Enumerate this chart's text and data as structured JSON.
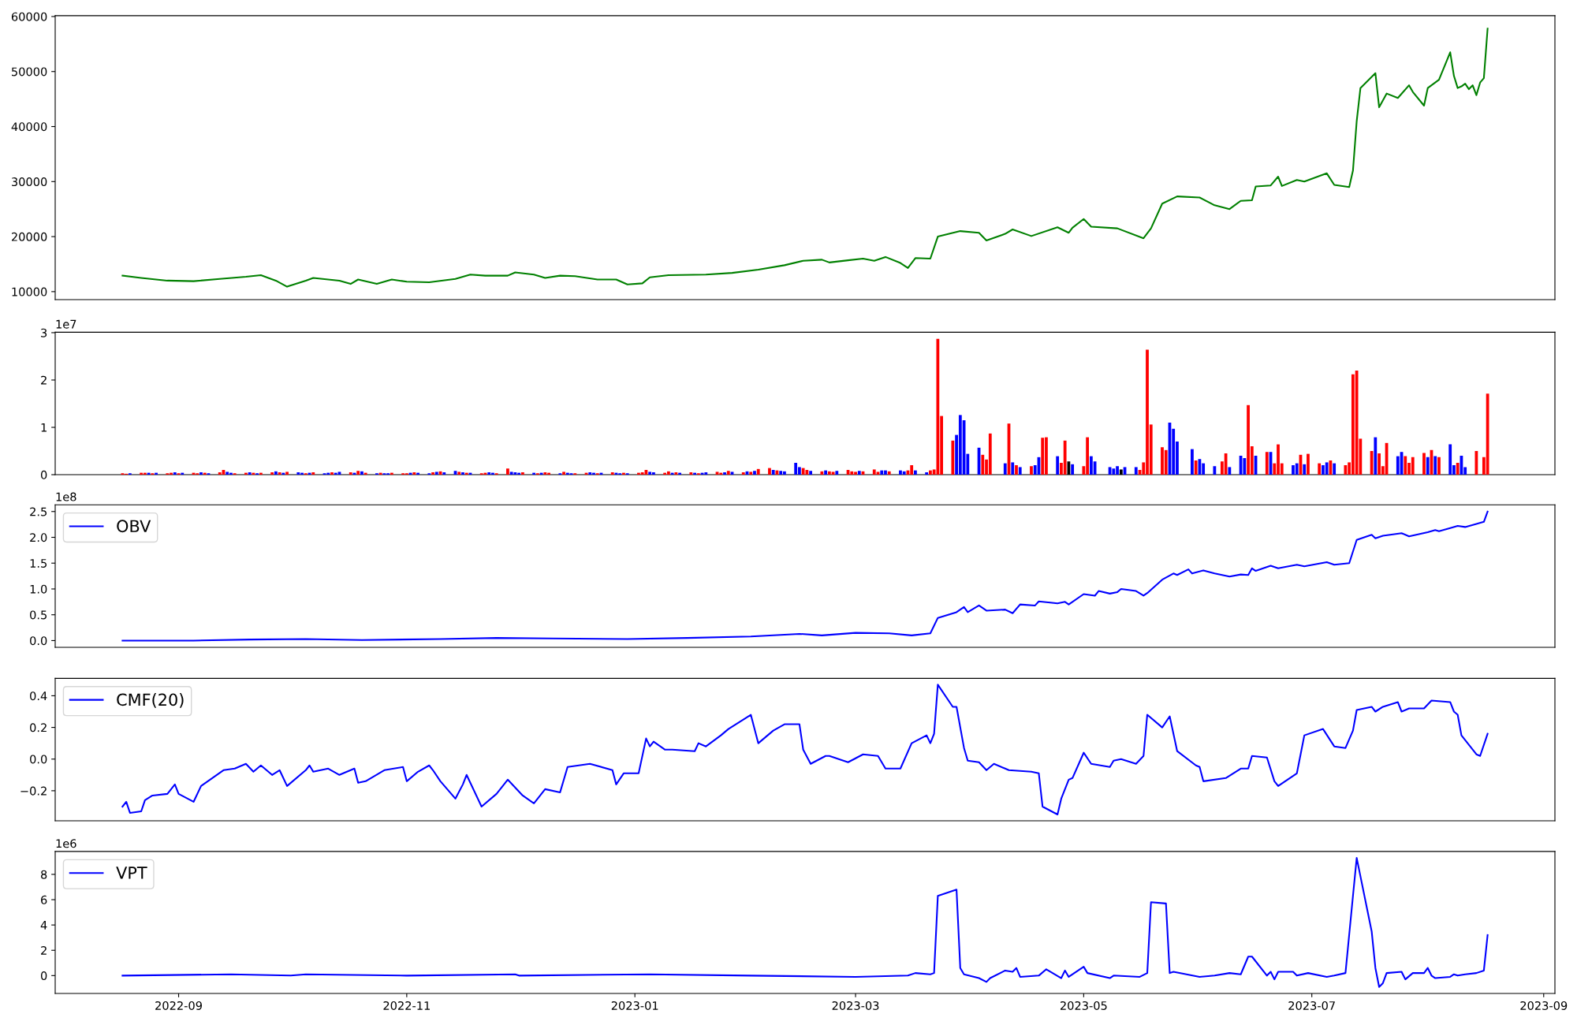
{
  "chart_data": [
    {
      "type": "line",
      "x": [
        "2022-08-17",
        "2022-08-22",
        "2022-08-29",
        "2022-09-05",
        "2022-09-12",
        "2022-09-19",
        "2022-09-23",
        "2022-09-27",
        "2022-09-30",
        "2022-10-05",
        "2022-10-07",
        "2022-10-14",
        "2022-10-17",
        "2022-10-19",
        "2022-10-24",
        "2022-10-28",
        "2022-11-01",
        "2022-11-07",
        "2022-11-14",
        "2022-11-18",
        "2022-11-22",
        "2022-11-28",
        "2022-11-30",
        "2022-12-05",
        "2022-12-08",
        "2022-12-12",
        "2022-12-16",
        "2022-12-22",
        "2022-12-27",
        "2022-12-30",
        "2023-01-03",
        "2023-01-05",
        "2023-01-10",
        "2023-01-20",
        "2023-01-27",
        "2023-02-03",
        "2023-02-10",
        "2023-02-15",
        "2023-02-20",
        "2023-02-22",
        "2023-02-27",
        "2023-03-03",
        "2023-03-06",
        "2023-03-09",
        "2023-03-13",
        "2023-03-15",
        "2023-03-17",
        "2023-03-21",
        "2023-03-23",
        "2023-03-29",
        "2023-04-03",
        "2023-04-05",
        "2023-04-10",
        "2023-04-12",
        "2023-04-17",
        "2023-04-24",
        "2023-04-27",
        "2023-04-28",
        "2023-05-01",
        "2023-05-03",
        "2023-05-10",
        "2023-05-17",
        "2023-05-19",
        "2023-05-22",
        "2023-05-26",
        "2023-06-01",
        "2023-06-05",
        "2023-06-09",
        "2023-06-12",
        "2023-06-15",
        "2023-06-16",
        "2023-06-20",
        "2023-06-22",
        "2023-06-23",
        "2023-06-27",
        "2023-06-29",
        "2023-07-05",
        "2023-07-07",
        "2023-07-11",
        "2023-07-12",
        "2023-07-13",
        "2023-07-14",
        "2023-07-18",
        "2023-07-19",
        "2023-07-21",
        "2023-07-24",
        "2023-07-27",
        "2023-07-28",
        "2023-07-31",
        "2023-08-01",
        "2023-08-04",
        "2023-08-07",
        "2023-08-08",
        "2023-08-09",
        "2023-08-10",
        "2023-08-11",
        "2023-08-12",
        "2023-08-13",
        "2023-08-14",
        "2023-08-15",
        "2023-08-16",
        "2023-08-17"
      ],
      "series": [
        {
          "color": "#008000",
          "values": [
            12900,
            12500,
            12000,
            11900,
            12300,
            12700,
            13000,
            12000,
            10900,
            12000,
            12500,
            12000,
            11400,
            12200,
            11400,
            12200,
            11800,
            11700,
            12300,
            13100,
            12900,
            12900,
            13500,
            13100,
            12500,
            12900,
            12800,
            12200,
            12200,
            11300,
            11500,
            12600,
            13000,
            13100,
            13400,
            14000,
            14800,
            15600,
            15800,
            15300,
            15700,
            16000,
            15600,
            16300,
            15200,
            14300,
            16100,
            16000,
            20000,
            21000,
            20700,
            19300,
            20500,
            21300,
            20100,
            21700,
            20700,
            21600,
            23200,
            21800,
            21500,
            19700,
            21500,
            26000,
            27300,
            27100,
            25700,
            25000,
            26500,
            26600,
            29100,
            29300,
            30900,
            29200,
            30300,
            30000,
            31500,
            29400,
            29000,
            32000,
            41000,
            47000,
            49700,
            43500,
            46000,
            45200,
            47500,
            46300,
            43800,
            47000,
            48500,
            53500,
            49200,
            47000,
            47300,
            47800,
            46800,
            47500,
            45700,
            48000,
            48800,
            57800
          ]
        }
      ],
      "xlim": [
        "2022-07-30",
        "2023-09-04"
      ],
      "ylim": [
        8550,
        60150
      ],
      "yticks": [
        10000,
        20000,
        30000,
        40000,
        50000,
        60000
      ],
      "tick_labels": "y"
    },
    {
      "type": "bar",
      "x": [
        "2022-08-17",
        "2022-08-18",
        "2022-08-19",
        "2022-08-22",
        "2022-08-23",
        "2022-08-24",
        "2022-08-25",
        "2022-08-26",
        "2022-08-29",
        "2022-08-30",
        "2022-08-31",
        "2022-09-01",
        "2022-09-02",
        "2022-09-05",
        "2022-09-06",
        "2022-09-07",
        "2022-09-08",
        "2022-09-09",
        "2022-09-12",
        "2022-09-13",
        "2022-09-14",
        "2022-09-15",
        "2022-09-16",
        "2022-09-19",
        "2022-09-20",
        "2022-09-21",
        "2022-09-22",
        "2022-09-23",
        "2022-09-26",
        "2022-09-27",
        "2022-09-28",
        "2022-09-29",
        "2022-09-30",
        "2022-10-03",
        "2022-10-04",
        "2022-10-05",
        "2022-10-06",
        "2022-10-07",
        "2022-10-10",
        "2022-10-11",
        "2022-10-12",
        "2022-10-13",
        "2022-10-14",
        "2022-10-17",
        "2022-10-18",
        "2022-10-19",
        "2022-10-20",
        "2022-10-21",
        "2022-10-24",
        "2022-10-25",
        "2022-10-26",
        "2022-10-27",
        "2022-10-28",
        "2022-10-31",
        "2022-11-01",
        "2022-11-02",
        "2022-11-03",
        "2022-11-04",
        "2022-11-07",
        "2022-11-08",
        "2022-11-09",
        "2022-11-10",
        "2022-11-11",
        "2022-11-14",
        "2022-11-15",
        "2022-11-16",
        "2022-11-17",
        "2022-11-18",
        "2022-11-21",
        "2022-11-22",
        "2022-11-23",
        "2022-11-24",
        "2022-11-25",
        "2022-11-28",
        "2022-11-29",
        "2022-11-30",
        "2022-12-01",
        "2022-12-02",
        "2022-12-05",
        "2022-12-06",
        "2022-12-07",
        "2022-12-08",
        "2022-12-09",
        "2022-12-12",
        "2022-12-13",
        "2022-12-14",
        "2022-12-15",
        "2022-12-16",
        "2022-12-19",
        "2022-12-20",
        "2022-12-21",
        "2022-12-22",
        "2022-12-23",
        "2022-12-26",
        "2022-12-27",
        "2022-12-28",
        "2022-12-29",
        "2022-12-30",
        "2023-01-02",
        "2023-01-03",
        "2023-01-04",
        "2023-01-05",
        "2023-01-06",
        "2023-01-09",
        "2023-01-10",
        "2023-01-11",
        "2023-01-12",
        "2023-01-13",
        "2023-01-16",
        "2023-01-17",
        "2023-01-18",
        "2023-01-19",
        "2023-01-20",
        "2023-01-23",
        "2023-01-24",
        "2023-01-25",
        "2023-01-26",
        "2023-01-27",
        "2023-01-30",
        "2023-01-31",
        "2023-02-01",
        "2023-02-02",
        "2023-02-03",
        "2023-02-06",
        "2023-02-07",
        "2023-02-08",
        "2023-02-09",
        "2023-02-10",
        "2023-02-13",
        "2023-02-14",
        "2023-02-15",
        "2023-02-16",
        "2023-02-17",
        "2023-02-20",
        "2023-02-21",
        "2023-02-22",
        "2023-02-23",
        "2023-02-24",
        "2023-02-27",
        "2023-02-28",
        "2023-03-01",
        "2023-03-02",
        "2023-03-03",
        "2023-03-06",
        "2023-03-07",
        "2023-03-08",
        "2023-03-09",
        "2023-03-10",
        "2023-03-13",
        "2023-03-14",
        "2023-03-15",
        "2023-03-16",
        "2023-03-17",
        "2023-03-20",
        "2023-03-21",
        "2023-03-22",
        "2023-03-23",
        "2023-03-24",
        "2023-03-27",
        "2023-03-28",
        "2023-03-29",
        "2023-03-30",
        "2023-03-31",
        "2023-04-03",
        "2023-04-04",
        "2023-04-05",
        "2023-04-06",
        "2023-04-10",
        "2023-04-11",
        "2023-04-12",
        "2023-04-13",
        "2023-04-14",
        "2023-04-17",
        "2023-04-18",
        "2023-04-19",
        "2023-04-20",
        "2023-04-21",
        "2023-04-24",
        "2023-04-25",
        "2023-04-26",
        "2023-04-27",
        "2023-04-28",
        "2023-05-01",
        "2023-05-02",
        "2023-05-03",
        "2023-05-04",
        "2023-05-08",
        "2023-05-09",
        "2023-05-10",
        "2023-05-11",
        "2023-05-12",
        "2023-05-15",
        "2023-05-16",
        "2023-05-17",
        "2023-05-18",
        "2023-05-19",
        "2023-05-22",
        "2023-05-23",
        "2023-05-24",
        "2023-05-25",
        "2023-05-26",
        "2023-05-30",
        "2023-05-31",
        "2023-06-01",
        "2023-06-02",
        "2023-06-05",
        "2023-06-07",
        "2023-06-08",
        "2023-06-09",
        "2023-06-12",
        "2023-06-13",
        "2023-06-14",
        "2023-06-15",
        "2023-06-16",
        "2023-06-19",
        "2023-06-20",
        "2023-06-21",
        "2023-06-22",
        "2023-06-23",
        "2023-06-26",
        "2023-06-27",
        "2023-06-28",
        "2023-06-29",
        "2023-06-30",
        "2023-07-03",
        "2023-07-04",
        "2023-07-05",
        "2023-07-06",
        "2023-07-07",
        "2023-07-10",
        "2023-07-11",
        "2023-07-12",
        "2023-07-13",
        "2023-07-14",
        "2023-07-17",
        "2023-07-18",
        "2023-07-19",
        "2023-07-20",
        "2023-07-21",
        "2023-07-24",
        "2023-07-25",
        "2023-07-26",
        "2023-07-27",
        "2023-07-28",
        "2023-07-31",
        "2023-08-01",
        "2023-08-02",
        "2023-08-03",
        "2023-08-04",
        "2023-08-07",
        "2023-08-08",
        "2023-08-09",
        "2023-08-10",
        "2023-08-11",
        "2023-08-14",
        "2023-08-16",
        "2023-08-17"
      ],
      "values": [
        0.03,
        0.02,
        0.03,
        0.04,
        0.04,
        0.04,
        0.03,
        0.04,
        0.03,
        0.04,
        0.05,
        0.03,
        0.04,
        0.04,
        0.03,
        0.05,
        0.04,
        0.03,
        0.05,
        0.1,
        0.06,
        0.04,
        0.03,
        0.04,
        0.05,
        0.04,
        0.03,
        0.04,
        0.05,
        0.07,
        0.05,
        0.04,
        0.06,
        0.05,
        0.04,
        0.03,
        0.04,
        0.05,
        0.03,
        0.04,
        0.05,
        0.04,
        0.06,
        0.05,
        0.04,
        0.08,
        0.07,
        0.04,
        0.03,
        0.04,
        0.03,
        0.03,
        0.04,
        0.03,
        0.03,
        0.04,
        0.05,
        0.04,
        0.03,
        0.05,
        0.06,
        0.07,
        0.05,
        0.08,
        0.06,
        0.05,
        0.04,
        0.04,
        0.03,
        0.04,
        0.05,
        0.04,
        0.03,
        0.13,
        0.06,
        0.05,
        0.04,
        0.05,
        0.04,
        0.03,
        0.04,
        0.05,
        0.04,
        0.03,
        0.06,
        0.04,
        0.03,
        0.03,
        0.04,
        0.05,
        0.04,
        0.03,
        0.04,
        0.05,
        0.04,
        0.03,
        0.04,
        0.03,
        0.04,
        0.05,
        0.1,
        0.06,
        0.05,
        0.04,
        0.07,
        0.04,
        0.05,
        0.04,
        0.05,
        0.04,
        0.03,
        0.04,
        0.05,
        0.06,
        0.04,
        0.05,
        0.08,
        0.06,
        0.05,
        0.07,
        0.06,
        0.08,
        0.12,
        0.14,
        0.1,
        0.09,
        0.08,
        0.07,
        0.25,
        0.16,
        0.14,
        0.1,
        0.08,
        0.07,
        0.09,
        0.07,
        0.06,
        0.08,
        0.1,
        0.07,
        0.06,
        0.08,
        0.07,
        0.11,
        0.06,
        0.09,
        0.09,
        0.07,
        0.09,
        0.07,
        0.09,
        0.2,
        0.09,
        0.05,
        0.09,
        0.11,
        2.87,
        1.24,
        0.72,
        0.84,
        1.26,
        1.15,
        0.44,
        0.57,
        0.42,
        0.32,
        0.87,
        0.24,
        1.08,
        0.26,
        0.2,
        0.16,
        0.18,
        0.2,
        0.37,
        0.78,
        0.79,
        0.39,
        0.25,
        0.72,
        0.28,
        0.22,
        0.18,
        0.79,
        0.39,
        0.28,
        0.16,
        0.13,
        0.18,
        0.11,
        0.16,
        0.16,
        0.1,
        0.26,
        2.64,
        1.06,
        0.58,
        0.52,
        1.1,
        0.97,
        0.7,
        0.54,
        0.3,
        0.33,
        0.24,
        0.18,
        0.28,
        0.45,
        0.16,
        0.4,
        0.35,
        1.47,
        0.6,
        0.4,
        0.48,
        0.48,
        0.24,
        0.64,
        0.24,
        0.2,
        0.24,
        0.42,
        0.22,
        0.44,
        0.24,
        0.2,
        0.26,
        0.3,
        0.24,
        0.2,
        0.26,
        2.12,
        2.2,
        0.76,
        0.5,
        0.79,
        0.45,
        0.18,
        0.67,
        0.39,
        0.48,
        0.39,
        0.25,
        0.37,
        0.46,
        0.37,
        0.52,
        0.39,
        0.37,
        0.64,
        0.2,
        0.25,
        0.4,
        0.16,
        0.5,
        0.37,
        1.71
      ],
      "colors": [
        "#ff0000",
        "#ff0000",
        "#0000ff",
        "#ff0000",
        "#ff0000",
        "#0000ff",
        "#ff0000",
        "#0000ff",
        "#ff0000",
        "#ff0000",
        "#0000ff",
        "#ff0000",
        "#0000ff",
        "#ff0000",
        "#ff0000",
        "#0000ff",
        "#ff0000",
        "#0000ff",
        "#ff0000",
        "#ff0000",
        "#0000ff",
        "#0000ff",
        "#ff0000",
        "#ff0000",
        "#0000ff",
        "#ff0000",
        "#0000ff",
        "#ff0000",
        "#ff0000",
        "#0000ff",
        "#ff0000",
        "#0000ff",
        "#ff0000",
        "#0000ff",
        "#0000ff",
        "#ff0000",
        "#0000ff",
        "#ff0000",
        "#0000ff",
        "#0000ff",
        "#ff0000",
        "#0000ff",
        "#0000ff",
        "#ff0000",
        "#0000ff",
        "#ff0000",
        "#0000ff",
        "#ff0000",
        "#0000ff",
        "#ff0000",
        "#0000ff",
        "#0000ff",
        "#ff0000",
        "#ff0000",
        "#ff0000",
        "#0000ff",
        "#ff0000",
        "#0000ff",
        "#0000ff",
        "#ff0000",
        "#0000ff",
        "#ff0000",
        "#0000ff",
        "#0000ff",
        "#ff0000",
        "#0000ff",
        "#ff0000",
        "#0000ff",
        "#ff0000",
        "#ff0000",
        "#0000ff",
        "#0000ff",
        "#ff0000",
        "#ff0000",
        "#0000ff",
        "#0000ff",
        "#0000ff",
        "#ff0000",
        "#0000ff",
        "#ff0000",
        "#0000ff",
        "#ff0000",
        "#ff0000",
        "#0000ff",
        "#ff0000",
        "#0000ff",
        "#0000ff",
        "#ff0000",
        "#ff0000",
        "#0000ff",
        "#0000ff",
        "#ff0000",
        "#0000ff",
        "#ff0000",
        "#0000ff",
        "#0000ff",
        "#ff0000",
        "#0000ff",
        "#ff0000",
        "#ff0000",
        "#ff0000",
        "#0000ff",
        "#0000ff",
        "#ff0000",
        "#ff0000",
        "#0000ff",
        "#ff0000",
        "#0000ff",
        "#ff0000",
        "#0000ff",
        "#ff0000",
        "#0000ff",
        "#0000ff",
        "#ff0000",
        "#ff0000",
        "#0000ff",
        "#ff0000",
        "#0000ff",
        "#ff0000",
        "#0000ff",
        "#ff0000",
        "#0000ff",
        "#ff0000",
        "#ff0000",
        "#0000ff",
        "#ff0000",
        "#0000ff",
        "#0000ff",
        "#0000ff",
        "#0000ff",
        "#ff0000",
        "#ff0000",
        "#0000ff",
        "#ff0000",
        "#0000ff",
        "#ff0000",
        "#ff0000",
        "#0000ff",
        "#ff0000",
        "#ff0000",
        "#ff0000",
        "#0000ff",
        "#ff0000",
        "#ff0000",
        "#ff0000",
        "#0000ff",
        "#0000ff",
        "#ff0000",
        "#0000ff",
        "#0000ff",
        "#ff0000",
        "#ff0000",
        "#0000ff",
        "#0000ff",
        "#ff0000",
        "#ff0000",
        "#ff0000",
        "#ff0000",
        "#ff0000",
        "#0000ff",
        "#0000ff",
        "#0000ff",
        "#0000ff",
        "#0000ff",
        "#ff0000",
        "#ff0000",
        "#ff0000",
        "#0000ff",
        "#ff0000",
        "#0000ff",
        "#ff0000",
        "#0000ff",
        "#ff0000",
        "#0000ff",
        "#0000ff",
        "#ff0000",
        "#ff0000",
        "#0000ff",
        "#ff0000",
        "#ff0000",
        "#000000",
        "#0000ff",
        "#ff0000",
        "#ff0000",
        "#0000ff",
        "#0000ff",
        "#0000ff",
        "#0000ff",
        "#0000ff",
        "#000000",
        "#0000ff",
        "#0000ff",
        "#ff0000",
        "#ff0000",
        "#ff0000",
        "#ff0000",
        "#ff0000",
        "#ff0000",
        "#0000ff",
        "#0000ff",
        "#0000ff",
        "#0000ff",
        "#ff0000",
        "#0000ff",
        "#0000ff",
        "#0000ff",
        "#ff0000",
        "#ff0000",
        "#0000ff",
        "#0000ff",
        "#0000ff",
        "#ff0000",
        "#ff0000",
        "#0000ff",
        "#ff0000",
        "#0000ff",
        "#ff0000",
        "#ff0000",
        "#ff0000",
        "#0000ff",
        "#0000ff",
        "#ff0000",
        "#0000ff",
        "#ff0000",
        "#ff0000",
        "#0000ff",
        "#0000ff",
        "#ff0000",
        "#0000ff",
        "#ff0000",
        "#ff0000",
        "#ff0000",
        "#ff0000",
        "#ff0000",
        "#ff0000",
        "#0000ff",
        "#ff0000",
        "#ff0000",
        "#ff0000",
        "#0000ff",
        "#0000ff",
        "#ff0000",
        "#ff0000",
        "#ff0000",
        "#ff0000",
        "#0000ff",
        "#ff0000",
        "#0000ff",
        "#ff0000",
        "#0000ff",
        "#0000ff",
        "#ff0000",
        "#0000ff",
        "#0000ff",
        "#ff0000",
        "#ff0000",
        "#ff0000"
      ],
      "xlim": [
        "2022-07-30",
        "2023-09-04"
      ],
      "ylim": [
        0,
        3.01
      ],
      "yticks": [
        0,
        1,
        2,
        3
      ],
      "tick_labels": "y",
      "annotations": [
        "1e7"
      ]
    },
    {
      "type": "line",
      "x": [
        "2022-08-17",
        "2022-09-05",
        "2022-09-20",
        "2022-10-05",
        "2022-10-20",
        "2022-11-10",
        "2022-11-25",
        "2022-12-10",
        "2022-12-30",
        "2023-01-15",
        "2023-02-01",
        "2023-02-14",
        "2023-02-20",
        "2023-03-01",
        "2023-03-10",
        "2023-03-16",
        "2023-03-21",
        "2023-03-23",
        "2023-03-28",
        "2023-03-30",
        "2023-03-31",
        "2023-04-03",
        "2023-04-05",
        "2023-04-10",
        "2023-04-12",
        "2023-04-14",
        "2023-04-18",
        "2023-04-19",
        "2023-04-24",
        "2023-04-26",
        "2023-04-27",
        "2023-05-01",
        "2023-05-04",
        "2023-05-05",
        "2023-05-08",
        "2023-05-10",
        "2023-05-11",
        "2023-05-15",
        "2023-05-17",
        "2023-05-18",
        "2023-05-22",
        "2023-05-25",
        "2023-05-26",
        "2023-05-29",
        "2023-05-30",
        "2023-06-02",
        "2023-06-05",
        "2023-06-09",
        "2023-06-12",
        "2023-06-14",
        "2023-06-15",
        "2023-06-16",
        "2023-06-20",
        "2023-06-22",
        "2023-06-27",
        "2023-06-29",
        "2023-07-05",
        "2023-07-07",
        "2023-07-11",
        "2023-07-13",
        "2023-07-17",
        "2023-07-18",
        "2023-07-20",
        "2023-07-25",
        "2023-07-27",
        "2023-08-01",
        "2023-08-03",
        "2023-08-04",
        "2023-08-07",
        "2023-08-09",
        "2023-08-11",
        "2023-08-14",
        "2023-08-16",
        "2023-08-17"
      ],
      "series": [
        {
          "name": "OBV",
          "color": "#0000ff",
          "values": [
            0,
            0,
            0.02,
            0.03,
            0.01,
            0.03,
            0.05,
            0.04,
            0.03,
            0.05,
            0.08,
            0.13,
            0.1,
            0.15,
            0.14,
            0.1,
            0.14,
            0.44,
            0.55,
            0.65,
            0.55,
            0.68,
            0.58,
            0.6,
            0.53,
            0.7,
            0.68,
            0.76,
            0.72,
            0.75,
            0.7,
            0.9,
            0.87,
            0.96,
            0.91,
            0.94,
            1.0,
            0.96,
            0.87,
            0.92,
            1.18,
            1.3,
            1.27,
            1.38,
            1.3,
            1.36,
            1.3,
            1.24,
            1.28,
            1.27,
            1.4,
            1.35,
            1.45,
            1.4,
            1.47,
            1.44,
            1.52,
            1.47,
            1.5,
            1.95,
            2.05,
            1.98,
            2.03,
            2.08,
            2.02,
            2.1,
            2.14,
            2.12,
            2.18,
            2.22,
            2.2,
            2.26,
            2.3,
            2.5
          ]
        }
      ],
      "xlim": [
        "2022-07-30",
        "2023-09-04"
      ],
      "ylim": [
        -0.13,
        2.63
      ],
      "yticks": [
        {
          "value": 0,
          "label": "0.0"
        },
        {
          "value": 0.5,
          "label": "0.5"
        },
        {
          "value": 1,
          "label": "1.0"
        },
        {
          "value": 1.5,
          "label": "1.5"
        },
        {
          "value": 2,
          "label": "2.0"
        },
        {
          "value": 2.5,
          "label": "2.5"
        }
      ],
      "tick_labels": "y",
      "legend": "top left",
      "annotations": [
        "1e8"
      ]
    },
    {
      "type": "line",
      "x": [
        "2022-08-17",
        "2022-08-18",
        "2022-08-19",
        "2022-08-22",
        "2022-08-23",
        "2022-08-25",
        "2022-08-29",
        "2022-08-31",
        "2022-09-01",
        "2022-09-05",
        "2022-09-07",
        "2022-09-13",
        "2022-09-16",
        "2022-09-19",
        "2022-09-21",
        "2022-09-23",
        "2022-09-26",
        "2022-09-28",
        "2022-09-30",
        "2022-10-05",
        "2022-10-06",
        "2022-10-07",
        "2022-10-11",
        "2022-10-14",
        "2022-10-18",
        "2022-10-19",
        "2022-10-21",
        "2022-10-26",
        "2022-10-31",
        "2022-11-01",
        "2022-11-04",
        "2022-11-07",
        "2022-11-08",
        "2022-11-10",
        "2022-11-14",
        "2022-11-16",
        "2022-11-17",
        "2022-11-21",
        "2022-11-25",
        "2022-11-28",
        "2022-12-02",
        "2022-12-05",
        "2022-12-08",
        "2022-12-12",
        "2022-12-14",
        "2022-12-20",
        "2022-12-26",
        "2022-12-27",
        "2022-12-29",
        "2023-01-02",
        "2023-01-04",
        "2023-01-05",
        "2023-01-06",
        "2023-01-09",
        "2023-01-11",
        "2023-01-17",
        "2023-01-18",
        "2023-01-20",
        "2023-01-24",
        "2023-01-26",
        "2023-01-30",
        "2023-02-01",
        "2023-02-03",
        "2023-02-07",
        "2023-02-10",
        "2023-02-14",
        "2023-02-15",
        "2023-02-17",
        "2023-02-21",
        "2023-02-22",
        "2023-02-27",
        "2023-03-03",
        "2023-03-07",
        "2023-03-09",
        "2023-03-13",
        "2023-03-16",
        "2023-03-20",
        "2023-03-21",
        "2023-03-22",
        "2023-03-23",
        "2023-03-27",
        "2023-03-28",
        "2023-03-30",
        "2023-03-31",
        "2023-04-03",
        "2023-04-05",
        "2023-04-07",
        "2023-04-10",
        "2023-04-11",
        "2023-04-17",
        "2023-04-19",
        "2023-04-20",
        "2023-04-24",
        "2023-04-25",
        "2023-04-27",
        "2023-04-28",
        "2023-05-01",
        "2023-05-03",
        "2023-05-08",
        "2023-05-09",
        "2023-05-11",
        "2023-05-15",
        "2023-05-17",
        "2023-05-18",
        "2023-05-22",
        "2023-05-24",
        "2023-05-26",
        "2023-05-31",
        "2023-06-01",
        "2023-06-02",
        "2023-06-08",
        "2023-06-12",
        "2023-06-14",
        "2023-06-15",
        "2023-06-19",
        "2023-06-21",
        "2023-06-22",
        "2023-06-27",
        "2023-06-28",
        "2023-06-29",
        "2023-07-04",
        "2023-07-07",
        "2023-07-10",
        "2023-07-12",
        "2023-07-13",
        "2023-07-17",
        "2023-07-18",
        "2023-07-20",
        "2023-07-24",
        "2023-07-25",
        "2023-07-27",
        "2023-07-31",
        "2023-08-02",
        "2023-08-07",
        "2023-08-08",
        "2023-08-09",
        "2023-08-10",
        "2023-08-14",
        "2023-08-15",
        "2023-08-17"
      ],
      "series": [
        {
          "name": "CMF(20)",
          "color": "#0000ff",
          "values": [
            -0.3,
            -0.27,
            -0.34,
            -0.33,
            -0.26,
            -0.23,
            -0.22,
            -0.16,
            -0.22,
            -0.27,
            -0.17,
            -0.07,
            -0.06,
            -0.03,
            -0.08,
            -0.04,
            -0.1,
            -0.07,
            -0.17,
            -0.07,
            -0.04,
            -0.08,
            -0.06,
            -0.1,
            -0.06,
            -0.15,
            -0.14,
            -0.07,
            -0.05,
            -0.14,
            -0.08,
            -0.04,
            -0.07,
            -0.14,
            -0.25,
            -0.16,
            -0.1,
            -0.3,
            -0.22,
            -0.13,
            -0.23,
            -0.28,
            -0.19,
            -0.21,
            -0.05,
            -0.03,
            -0.07,
            -0.16,
            -0.09,
            -0.09,
            0.13,
            0.08,
            0.11,
            0.06,
            0.06,
            0.05,
            0.1,
            0.08,
            0.15,
            0.19,
            0.25,
            0.28,
            0.1,
            0.18,
            0.22,
            0.22,
            0.06,
            -0.03,
            0.02,
            0.02,
            -0.02,
            0.03,
            0.02,
            -0.06,
            -0.06,
            0.1,
            0.15,
            0.1,
            0.16,
            0.47,
            0.33,
            0.33,
            0.07,
            -0.01,
            -0.02,
            -0.07,
            -0.03,
            -0.06,
            -0.07,
            -0.08,
            -0.09,
            -0.3,
            -0.35,
            -0.25,
            -0.13,
            -0.12,
            0.04,
            -0.03,
            -0.05,
            -0.01,
            0.0,
            -0.03,
            0.02,
            0.28,
            0.2,
            0.27,
            0.05,
            -0.04,
            -0.05,
            -0.14,
            -0.12,
            -0.06,
            -0.06,
            0.02,
            0.01,
            -0.14,
            -0.17,
            -0.09,
            0.03,
            0.15,
            0.19,
            0.08,
            0.07,
            0.18,
            0.31,
            0.33,
            0.3,
            0.33,
            0.36,
            0.3,
            0.32,
            0.32,
            0.37,
            0.36,
            0.3,
            0.28,
            0.15,
            0.03,
            0.02,
            0.16
          ]
        }
      ],
      "xlim": [
        "2022-07-30",
        "2023-09-04"
      ],
      "ylim": [
        -0.39,
        0.51
      ],
      "yticks": [
        {
          "value": -0.2,
          "label": "−0.2"
        },
        {
          "value": 0,
          "label": "0.0"
        },
        {
          "value": 0.2,
          "label": "0.2"
        },
        {
          "value": 0.4,
          "label": "0.4"
        }
      ],
      "tick_labels": "y",
      "legend": "top left"
    },
    {
      "type": "line",
      "x": [
        "2022-08-17",
        "2022-09-15",
        "2022-10-01",
        "2022-10-05",
        "2022-11-01",
        "2022-11-30",
        "2022-12-01",
        "2023-01-05",
        "2023-02-01",
        "2023-03-01",
        "2023-03-15",
        "2023-03-17",
        "2023-03-21",
        "2023-03-22",
        "2023-03-23",
        "2023-03-28",
        "2023-03-29",
        "2023-03-30",
        "2023-04-03",
        "2023-04-05",
        "2023-04-06",
        "2023-04-10",
        "2023-04-12",
        "2023-04-13",
        "2023-04-14",
        "2023-04-19",
        "2023-04-21",
        "2023-04-25",
        "2023-04-26",
        "2023-04-27",
        "2023-05-01",
        "2023-05-02",
        "2023-05-08",
        "2023-05-09",
        "2023-05-16",
        "2023-05-18",
        "2023-05-19",
        "2023-05-23",
        "2023-05-24",
        "2023-05-25",
        "2023-06-01",
        "2023-06-05",
        "2023-06-09",
        "2023-06-12",
        "2023-06-14",
        "2023-06-15",
        "2023-06-19",
        "2023-06-20",
        "2023-06-21",
        "2023-06-22",
        "2023-06-26",
        "2023-06-27",
        "2023-06-30",
        "2023-07-05",
        "2023-07-07",
        "2023-07-10",
        "2023-07-12",
        "2023-07-13",
        "2023-07-17",
        "2023-07-18",
        "2023-07-19",
        "2023-07-20",
        "2023-07-21",
        "2023-07-25",
        "2023-07-26",
        "2023-07-28",
        "2023-07-31",
        "2023-08-01",
        "2023-08-02",
        "2023-08-03",
        "2023-08-07",
        "2023-08-08",
        "2023-08-09",
        "2023-08-11",
        "2023-08-14",
        "2023-08-16",
        "2023-08-17"
      ],
      "series": [
        {
          "name": "VPT",
          "color": "#0000ff",
          "values": [
            0,
            0.1,
            0,
            0.1,
            0,
            0.1,
            0,
            0.1,
            0,
            -0.1,
            0,
            0.2,
            0.1,
            0.2,
            6.3,
            6.8,
            0.6,
            0.1,
            -0.2,
            -0.5,
            -0.2,
            0.4,
            0.3,
            0.6,
            -0.1,
            0,
            0.5,
            -0.2,
            0.4,
            -0.1,
            0.7,
            0.2,
            -0.2,
            0,
            -0.1,
            0.2,
            5.8,
            5.7,
            0.2,
            0.3,
            -0.1,
            0,
            0.2,
            0.1,
            1.5,
            1.5,
            0,
            0.3,
            -0.3,
            0.3,
            0.3,
            0,
            0.2,
            -0.1,
            0,
            0.2,
            6.3,
            9.3,
            3.5,
            0.6,
            -0.9,
            -0.6,
            0.2,
            0.3,
            -0.3,
            0.2,
            0.2,
            0.6,
            0,
            -0.2,
            -0.1,
            0.1,
            0,
            0.1,
            0.2,
            0.4,
            3.2
          ]
        }
      ],
      "xlim": [
        "2022-07-30",
        "2023-09-04"
      ],
      "ylim": [
        -1.41,
        9.81
      ],
      "yticks": [
        0,
        2,
        4,
        6,
        8
      ],
      "xticks": [
        {
          "value": "2022-09-01",
          "label": "2022-09"
        },
        {
          "value": "2022-11-01",
          "label": "2022-11"
        },
        {
          "value": "2023-01-01",
          "label": "2023-01"
        },
        {
          "value": "2023-03-01",
          "label": "2023-03"
        },
        {
          "value": "2023-05-01",
          "label": "2023-05"
        },
        {
          "value": "2023-07-01",
          "label": "2023-07"
        },
        {
          "value": "2023-09-01",
          "label": "2023-09"
        }
      ],
      "legend": "top left",
      "annotations": [
        "1e6"
      ]
    }
  ]
}
